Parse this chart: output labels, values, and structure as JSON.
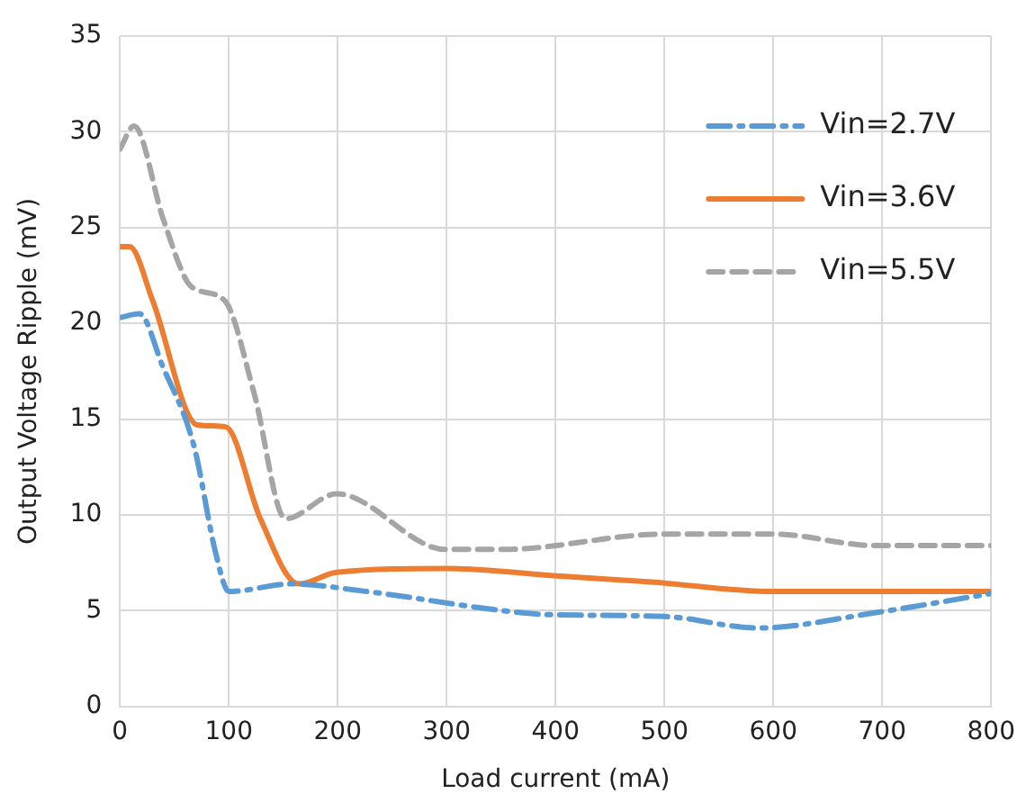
{
  "chart_data": {
    "type": "line",
    "xlabel": "Load current (mA)",
    "ylabel": "Output Voltage Ripple (mV)",
    "xlim": [
      0,
      800
    ],
    "xticks": [
      0,
      100,
      200,
      300,
      400,
      500,
      600,
      700,
      800
    ],
    "ylim": [
      0,
      35
    ],
    "yticks": [
      0,
      5,
      10,
      15,
      20,
      25,
      30,
      35
    ],
    "grid": true,
    "legend": "top right",
    "marker": "none",
    "series": [
      {
        "name": "Vin=2.7V",
        "color": "#5b9bd5",
        "line_style": "dashdot",
        "x": [
          0,
          18,
          39,
          68,
          88,
          100,
          157,
          227,
          352,
          392,
          500,
          586,
          694,
          800
        ],
        "values": [
          20.3,
          20.5,
          17.8,
          13.6,
          8.0,
          6.0,
          6.4,
          6.0,
          5.0,
          4.8,
          4.7,
          4.1,
          4.9,
          5.9
        ]
      },
      {
        "name": "Vin=3.6V",
        "color": "#ed7d31",
        "line_style": "solid",
        "x": [
          0,
          9,
          30,
          71,
          97,
          129,
          164,
          199,
          299,
          405,
          488,
          600,
          800
        ],
        "values": [
          24.0,
          24.0,
          21.2,
          14.7,
          14.6,
          9.8,
          6.4,
          7.0,
          7.2,
          6.8,
          6.5,
          6.0,
          6.0
        ]
      },
      {
        "name": "Vin=5.5V",
        "color": "#a5a5a5",
        "line_style": "dashed",
        "x": [
          0,
          13,
          40,
          66,
          96,
          123,
          152,
          199,
          299,
          352,
          500,
          600,
          694,
          800
        ],
        "values": [
          29.1,
          30.3,
          25.4,
          21.9,
          21.2,
          16.4,
          9.8,
          11.1,
          8.2,
          8.2,
          9.0,
          9.0,
          8.4,
          8.4
        ]
      }
    ]
  }
}
